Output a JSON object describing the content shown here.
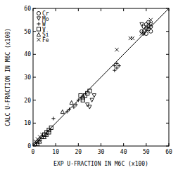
{
  "chart_data": {
    "type": "scatter",
    "x_label": "EXP U-FRACTION IN M6C (x100)",
    "y_label": "CALC U-FRACTION IN M6C (x100)",
    "xlim": [
      0,
      60
    ],
    "ylim": [
      0,
      60
    ],
    "xticks": [
      0,
      10,
      20,
      30,
      40,
      50,
      60
    ],
    "yticks": [
      0,
      10,
      20,
      30,
      40,
      50,
      60
    ],
    "legend": "upper left",
    "series": [
      {
        "name": "Cr",
        "marker": "circle",
        "color": "#000000",
        "x": [
          48,
          49,
          50,
          51,
          52,
          50,
          49,
          51,
          52
        ],
        "values": [
          50,
          52,
          53,
          51,
          52,
          49,
          50,
          54,
          50
        ]
      },
      {
        "name": "Mo",
        "marker": "triangle-down",
        "color": "#000000",
        "x": [
          48,
          50,
          51,
          52,
          49,
          24,
          25,
          26,
          27
        ],
        "values": [
          53,
          51,
          52,
          53,
          49,
          18,
          17,
          20,
          22
        ]
      },
      {
        "name": "W",
        "marker": "plus",
        "color": "#000000",
        "x": [
          36,
          37,
          37,
          38,
          36,
          15,
          16,
          18,
          20,
          19,
          9
        ],
        "values": [
          35,
          34,
          36,
          35,
          33,
          15,
          16,
          17,
          20,
          18,
          12
        ]
      },
      {
        "name": "V",
        "marker": "square",
        "color": "#000000",
        "x": [
          22,
          23,
          24,
          22,
          21,
          25,
          6,
          7,
          8,
          5,
          7
        ],
        "values": [
          21,
          22,
          23,
          20,
          22,
          24,
          6,
          7,
          8,
          5,
          6
        ]
      },
      {
        "name": "Si",
        "marker": "triangle-up",
        "color": "#000000",
        "x": [
          1,
          2,
          3,
          2,
          4,
          5,
          6,
          3,
          17,
          13
        ],
        "values": [
          1,
          2,
          3,
          1,
          4,
          4,
          5,
          2,
          19,
          15
        ]
      },
      {
        "name": "Fe",
        "marker": "x",
        "color": "#000000",
        "x": [
          1,
          2,
          3,
          4,
          37,
          43,
          44,
          48,
          52
        ],
        "values": [
          2,
          3,
          4,
          5,
          42,
          47,
          47,
          49,
          55
        ]
      },
      {
        "type": "line",
        "color": "#000000",
        "x": [
          0,
          60
        ],
        "values": [
          0,
          60
        ]
      }
    ]
  }
}
